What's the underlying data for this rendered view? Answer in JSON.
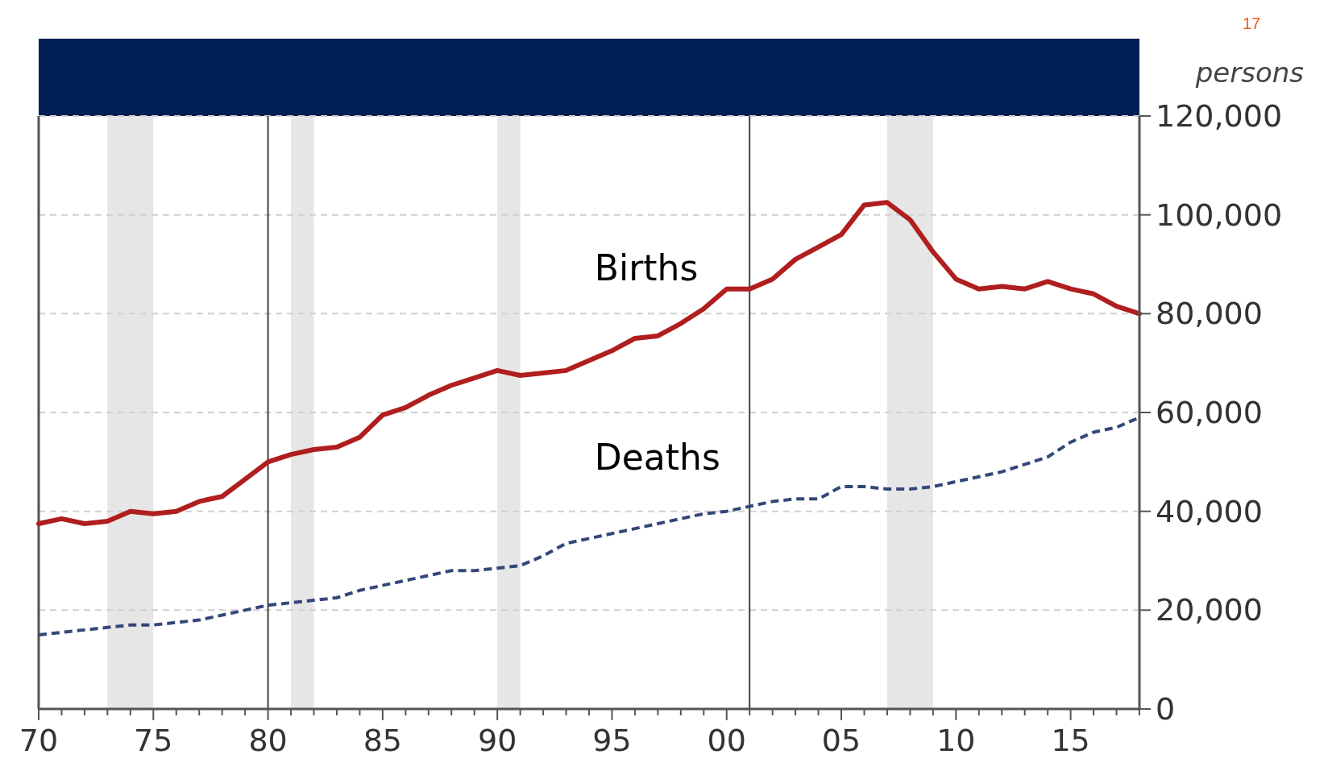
{
  "chart_data": {
    "type": "line",
    "ylabel": "persons",
    "annotations": [
      "17"
    ],
    "x": [
      1970,
      1971,
      1972,
      1973,
      1974,
      1975,
      1976,
      1977,
      1978,
      1979,
      1980,
      1981,
      1982,
      1983,
      1984,
      1985,
      1986,
      1987,
      1988,
      1989,
      1990,
      1991,
      1992,
      1993,
      1994,
      1995,
      1996,
      1997,
      1998,
      1999,
      2000,
      2001,
      2002,
      2003,
      2004,
      2005,
      2006,
      2007,
      2008,
      2009,
      2010,
      2011,
      2012,
      2013,
      2014,
      2015,
      2016,
      2017,
      2018
    ],
    "series": [
      {
        "name": "Births",
        "color": "#b01e1e",
        "line_style": "solid",
        "values": [
          37500,
          38500,
          37500,
          38000,
          40000,
          39500,
          40000,
          42000,
          43000,
          46500,
          50000,
          51500,
          52500,
          53000,
          55000,
          59500,
          61000,
          63500,
          65500,
          67000,
          68500,
          67500,
          68000,
          68500,
          70500,
          72500,
          75000,
          75500,
          78000,
          81000,
          85000,
          85000,
          87000,
          91000,
          93500,
          96000,
          102000,
          102500,
          99000,
          92500,
          87000,
          85000,
          85500,
          85000,
          86500,
          85000,
          84000,
          81500,
          80000
        ]
      },
      {
        "name": "Deaths",
        "color": "#34477a",
        "line_style": "dashed",
        "values": [
          15000,
          15500,
          16000,
          16500,
          17000,
          17000,
          17500,
          18000,
          19000,
          20000,
          21000,
          21500,
          22000,
          22500,
          24000,
          25000,
          26000,
          27000,
          28000,
          28000,
          28500,
          29000,
          31000,
          33500,
          34500,
          35500,
          36500,
          37500,
          38500,
          39500,
          40000,
          41000,
          42000,
          42500,
          42500,
          45000,
          45000,
          44500,
          44500,
          45000,
          46000,
          47000,
          48000,
          49500,
          51000,
          54000,
          56000,
          57000,
          59000
        ]
      }
    ],
    "xlim": [
      1970,
      2018
    ],
    "xticks": [
      {
        "value": 1970,
        "label": "70"
      },
      {
        "value": 1971,
        "label": null
      },
      {
        "value": 1972,
        "label": null
      },
      {
        "value": 1973,
        "label": null
      },
      {
        "value": 1974,
        "label": null
      },
      {
        "value": 1975,
        "label": "75"
      },
      {
        "value": 1976,
        "label": null
      },
      {
        "value": 1977,
        "label": null
      },
      {
        "value": 1978,
        "label": null
      },
      {
        "value": 1979,
        "label": null
      },
      {
        "value": 1980,
        "label": "80"
      },
      {
        "value": 1981,
        "label": null
      },
      {
        "value": 1982,
        "label": null
      },
      {
        "value": 1983,
        "label": null
      },
      {
        "value": 1984,
        "label": null
      },
      {
        "value": 1985,
        "label": "85"
      },
      {
        "value": 1986,
        "label": null
      },
      {
        "value": 1987,
        "label": null
      },
      {
        "value": 1988,
        "label": null
      },
      {
        "value": 1989,
        "label": null
      },
      {
        "value": 1990,
        "label": "90"
      },
      {
        "value": 1991,
        "label": null
      },
      {
        "value": 1992,
        "label": null
      },
      {
        "value": 1993,
        "label": null
      },
      {
        "value": 1994,
        "label": null
      },
      {
        "value": 1995,
        "label": "95"
      },
      {
        "value": 1996,
        "label": null
      },
      {
        "value": 1997,
        "label": null
      },
      {
        "value": 1998,
        "label": null
      },
      {
        "value": 1999,
        "label": null
      },
      {
        "value": 2000,
        "label": "00"
      },
      {
        "value": 2001,
        "label": null
      },
      {
        "value": 2002,
        "label": null
      },
      {
        "value": 2003,
        "label": null
      },
      {
        "value": 2004,
        "label": null
      },
      {
        "value": 2005,
        "label": "05"
      },
      {
        "value": 2006,
        "label": null
      },
      {
        "value": 2007,
        "label": null
      },
      {
        "value": 2008,
        "label": null
      },
      {
        "value": 2009,
        "label": null
      },
      {
        "value": 2010,
        "label": "10"
      },
      {
        "value": 2011,
        "label": null
      },
      {
        "value": 2012,
        "label": null
      },
      {
        "value": 2013,
        "label": null
      },
      {
        "value": 2014,
        "label": null
      },
      {
        "value": 2015,
        "label": "15"
      },
      {
        "value": 2016,
        "label": null
      },
      {
        "value": 2017,
        "label": null
      },
      {
        "value": 2018,
        "label": null
      }
    ],
    "ylim": [
      0,
      120000
    ],
    "yticks": [
      {
        "value": 0,
        "label": "0"
      },
      {
        "value": 20000,
        "label": "20,000"
      },
      {
        "value": 40000,
        "label": "40,000"
      },
      {
        "value": 60000,
        "label": "60,000"
      },
      {
        "value": 80000,
        "label": "80,000"
      },
      {
        "value": 100000,
        "label": "100,000"
      },
      {
        "value": 120000,
        "label": "120,000"
      }
    ],
    "grid": "y",
    "marker": "none",
    "ref_lines": [
      {
        "axis": "x",
        "value": 1980,
        "color": "#404040"
      },
      {
        "axis": "x",
        "value": 2001,
        "color": "#404040"
      }
    ],
    "bands": [
      {
        "axis": "x",
        "from": 1973,
        "to": 1975,
        "color": "#e6e6e6"
      },
      {
        "axis": "x",
        "from": 1981,
        "to": 1982,
        "color": "#e6e6e6"
      },
      {
        "axis": "x",
        "from": 1990,
        "to": 1991,
        "color": "#e6e6e6"
      },
      {
        "axis": "x",
        "from": 2007,
        "to": 2009,
        "color": "#e6e6e6"
      }
    ]
  }
}
